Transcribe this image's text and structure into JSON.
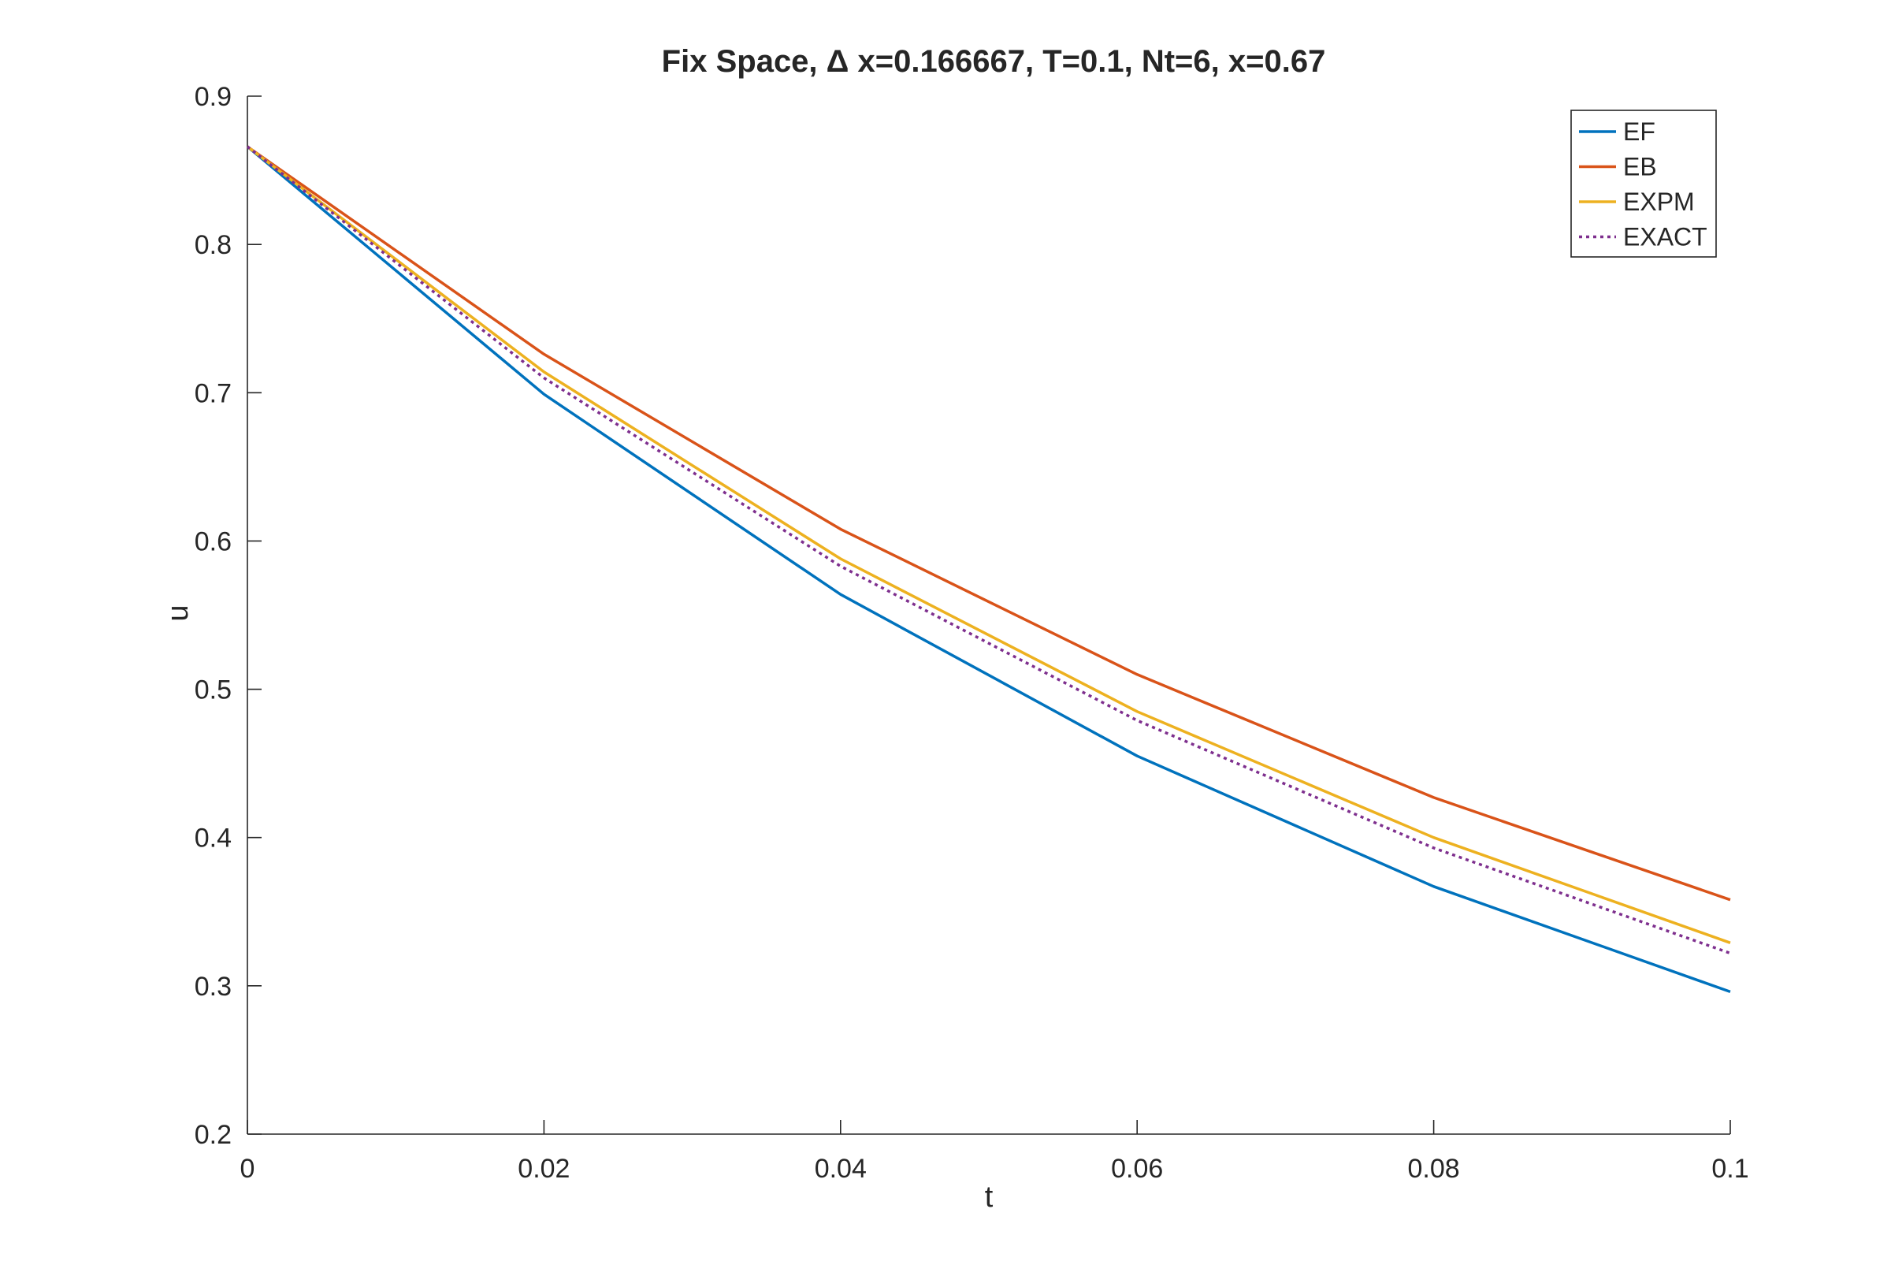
{
  "chart_data": {
    "type": "line",
    "title": "Fix Space, Δ x=0.166667, T=0.1, Nt=6, x=0.67",
    "xlabel": "t",
    "ylabel": "u",
    "xlim": [
      0,
      0.1
    ],
    "ylim": [
      0.2,
      0.9
    ],
    "xticks": [
      0,
      0.02,
      0.04,
      0.06,
      0.08,
      0.1
    ],
    "xtick_labels": [
      "0",
      "0.02",
      "0.04",
      "0.06",
      "0.08",
      "0.1"
    ],
    "yticks": [
      0.2,
      0.3,
      0.4,
      0.5,
      0.6,
      0.7,
      0.8,
      0.9
    ],
    "ytick_labels": [
      "0.2",
      "0.3",
      "0.4",
      "0.5",
      "0.6",
      "0.7",
      "0.8",
      "0.9"
    ],
    "grid": false,
    "legend_position": "top-right",
    "x": [
      0,
      0.02,
      0.04,
      0.06,
      0.08,
      0.1
    ],
    "series": [
      {
        "name": "EF",
        "color": "#0072BD",
        "style": "solid",
        "values": [
          0.866,
          0.699,
          0.564,
          0.455,
          0.367,
          0.296
        ]
      },
      {
        "name": "EB",
        "color": "#D95319",
        "style": "solid",
        "values": [
          0.866,
          0.726,
          0.608,
          0.51,
          0.427,
          0.358
        ]
      },
      {
        "name": "EXPM",
        "color": "#EDB120",
        "style": "solid",
        "values": [
          0.866,
          0.714,
          0.588,
          0.485,
          0.4,
          0.329
        ]
      },
      {
        "name": "EXACT",
        "color": "#7E2F8E",
        "style": "dotted",
        "values": [
          0.866,
          0.71,
          0.583,
          0.479,
          0.393,
          0.322
        ]
      }
    ]
  }
}
